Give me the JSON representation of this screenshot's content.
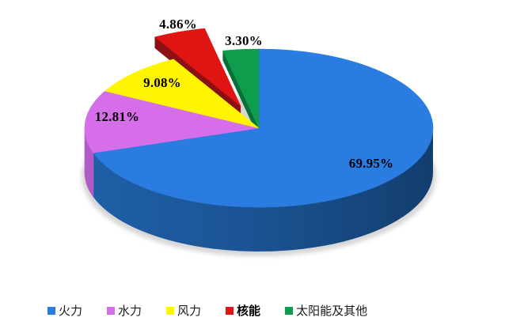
{
  "chart_data": {
    "type": "pie",
    "style": "3d-exploded",
    "title": "",
    "categories": [
      "火力",
      "水力",
      "风力",
      "核能",
      "太阳能及其他"
    ],
    "values": [
      69.95,
      12.81,
      9.08,
      4.86,
      3.3
    ],
    "value_labels": [
      "69.95%",
      "12.81%",
      "9.08%",
      "4.86%",
      "3.30%"
    ],
    "colors": [
      "#2A7CE0",
      "#D76EE9",
      "#FFF500",
      "#E11414",
      "#0E9D4D"
    ],
    "side_colors": [
      "#1A5290",
      "#B25BC8",
      "#C9C400",
      "#8C1013",
      "#077039"
    ],
    "start_angle_deg": 0,
    "direction": "clockwise",
    "exploded_slice": "核能",
    "legend_position": "bottom",
    "legend_bold_item": "核能",
    "background": "#FFFFFF"
  }
}
